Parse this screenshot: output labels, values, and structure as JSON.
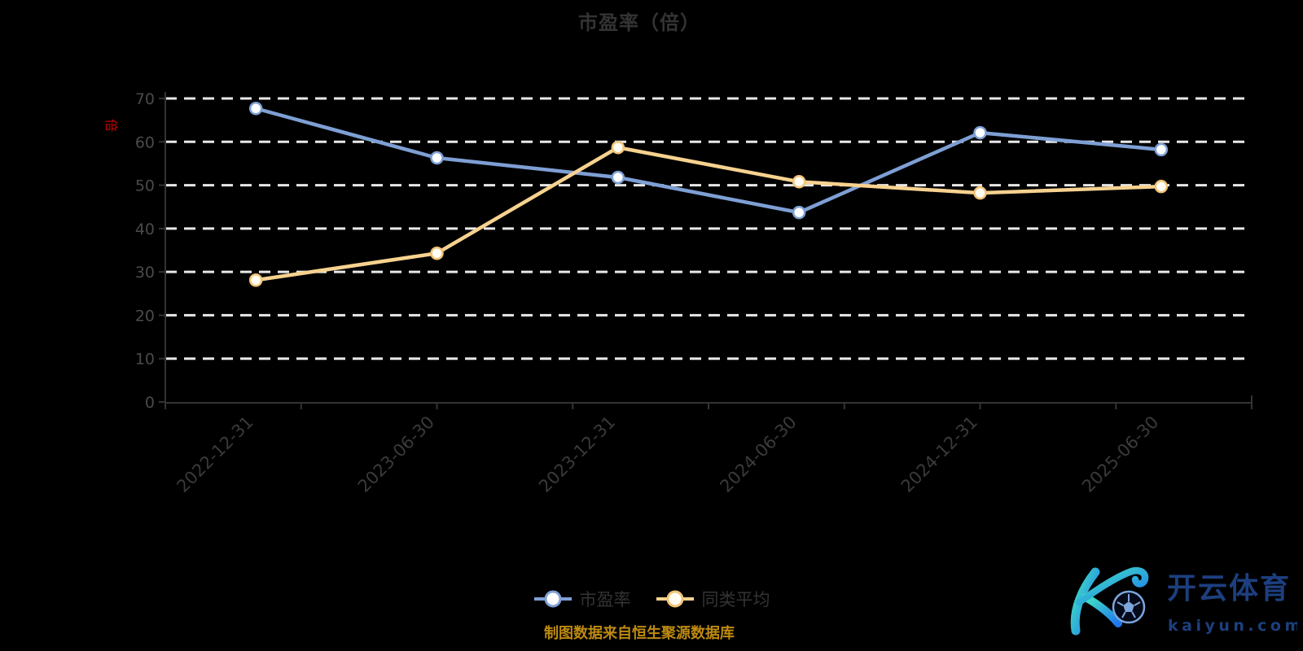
{
  "page": {
    "background": "#000000"
  },
  "chart_data": {
    "type": "line",
    "title": "市盈率（倍）",
    "y_axis_name": "倍",
    "categories": [
      "2022-12-31",
      "2023-06-30",
      "2023-12-31",
      "2024-06-30",
      "2024-12-31",
      "2025-06-30"
    ],
    "series": [
      {
        "name": "市盈率",
        "line_color": "#7e9fd4",
        "marker_fill": "#ffffff",
        "marker_stroke": "#7e9fd4",
        "values": [
          67.7,
          56.3,
          51.8,
          43.7,
          62.1,
          58.2
        ]
      },
      {
        "name": "同类平均",
        "line_color": "#f7d28f",
        "marker_fill": "#fffdf4",
        "marker_stroke": "#f2c377",
        "values": [
          28.1,
          34.3,
          58.7,
          50.8,
          48.2,
          49.7
        ]
      }
    ],
    "ylim": [
      0,
      70
    ],
    "y_ticks": [
      0,
      10,
      20,
      30,
      40,
      50,
      60,
      70
    ],
    "x_axis_tick_segments": 8,
    "grid": "horizontal-dashed-white",
    "legend_position": "bottom-center",
    "x_label_rotation": 45
  },
  "colors": {
    "title": "#333333",
    "axis_line": "#333333",
    "y_label": "#4a4a4a",
    "x_label": "#3a3a3a",
    "gridline": "#e8e8e8",
    "legend_text": "#333333",
    "source_text": "#bd8a10",
    "axis_name_red": "#cc0000",
    "watermark_navy": "#1d3f7f"
  },
  "footer": {
    "source_note": "制图数据来自恒生聚源数据库"
  },
  "watermark": {
    "brand": "开云体育",
    "domain": "kaiyun.com"
  }
}
